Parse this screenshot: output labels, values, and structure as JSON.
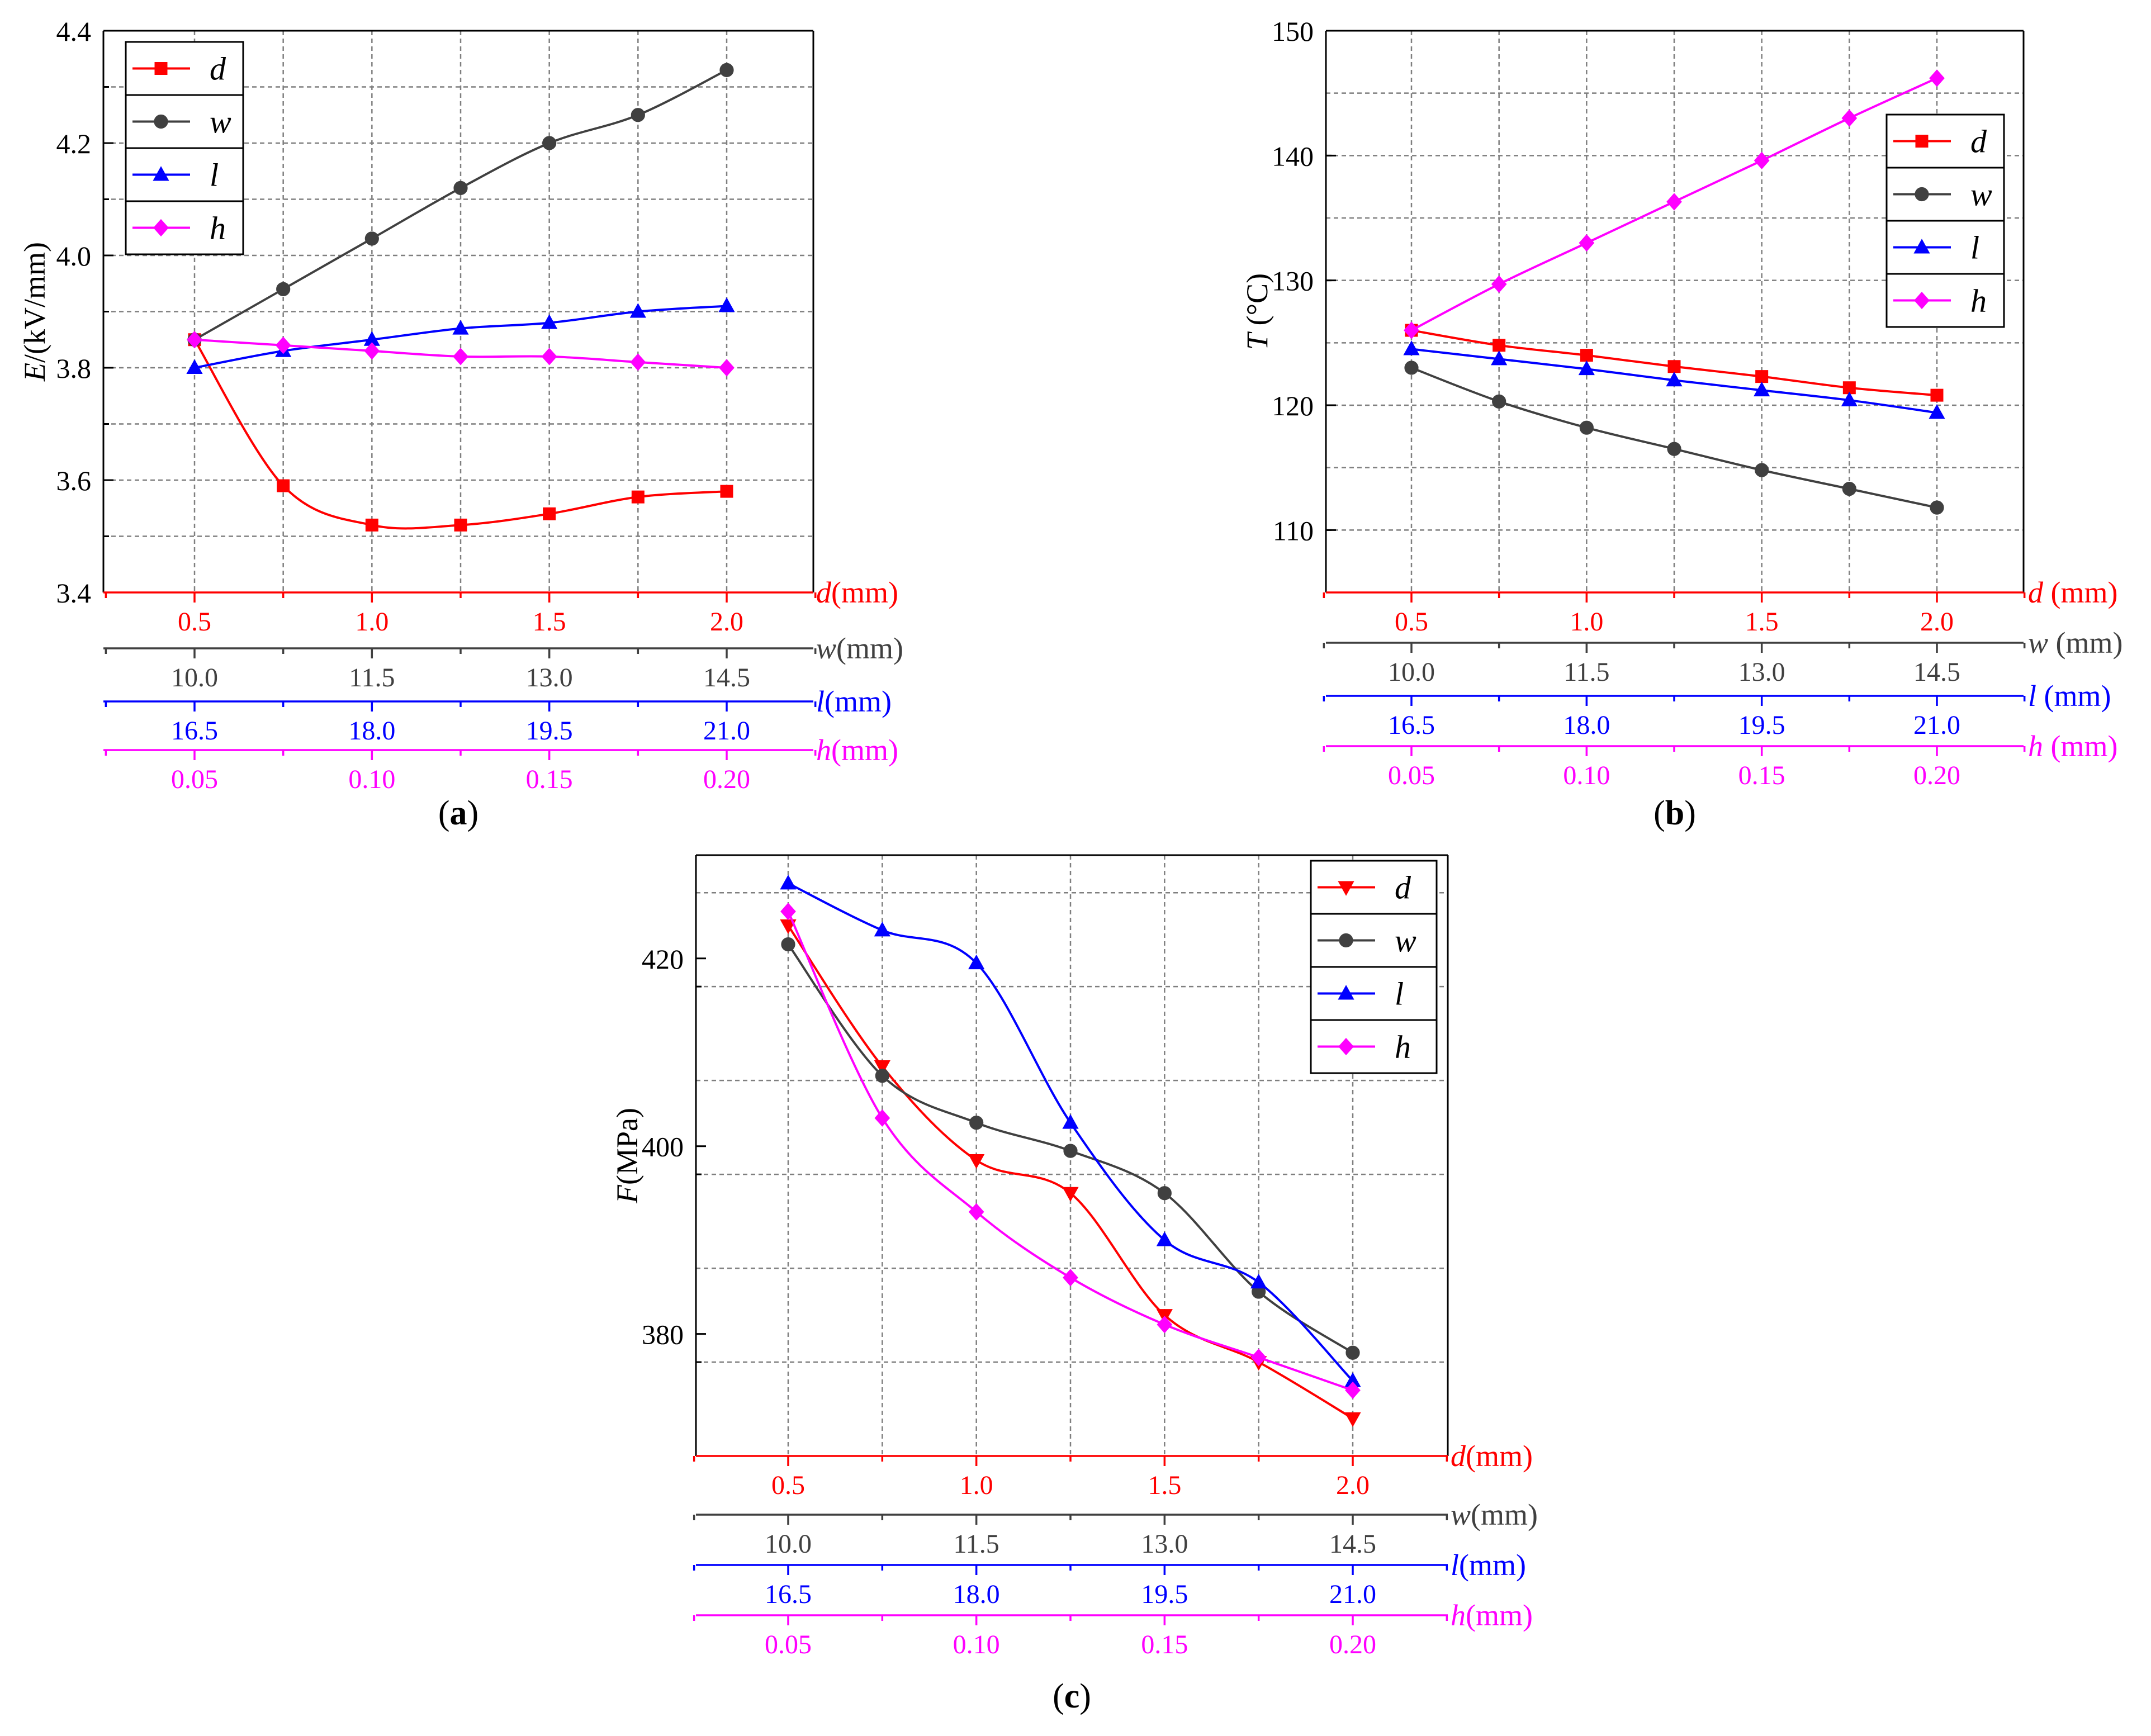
{
  "colors": {
    "d": "#ff0000",
    "w": "#404040",
    "l": "#0000ff",
    "h": "#ff00ff",
    "axis_black": "#000000",
    "grid": "#7f7f7f"
  },
  "chart_data": [
    {
      "id": "a",
      "type": "line",
      "panel_label": "a",
      "ylabel_var": "E",
      "ylabel_unit": "/(kV/mm)",
      "ylim": [
        3.4,
        4.4
      ],
      "yticks": [
        "3.4",
        "3.6",
        "3.8",
        "4.0",
        "4.2",
        "4.4"
      ],
      "x_positions": [
        0,
        1,
        2,
        3,
        4,
        5,
        6
      ],
      "secondary_axes": [
        {
          "key": "d",
          "var": "d",
          "unit": "(mm)",
          "ticks": [
            "0.5",
            "1.0",
            "1.5",
            "2.0"
          ]
        },
        {
          "key": "w",
          "var": "w",
          "unit": "(mm)",
          "ticks": [
            "10.0",
            "11.5",
            "13.0",
            "14.5"
          ]
        },
        {
          "key": "l",
          "var": "l",
          "unit": "(mm)",
          "ticks": [
            "16.5",
            "18.0",
            "19.5",
            "21.0"
          ]
        },
        {
          "key": "h",
          "var": "h",
          "unit": "(mm)",
          "ticks": [
            "0.05",
            "0.10",
            "0.15",
            "0.20"
          ]
        }
      ],
      "legend_position": "top-left",
      "series": [
        {
          "name": "d",
          "marker": "square",
          "values": [
            3.85,
            3.59,
            3.52,
            3.52,
            3.54,
            3.57,
            3.58
          ]
        },
        {
          "name": "w",
          "marker": "circle",
          "values": [
            3.85,
            3.94,
            4.03,
            4.12,
            4.2,
            4.25,
            4.33
          ]
        },
        {
          "name": "l",
          "marker": "triangle",
          "values": [
            3.8,
            3.83,
            3.85,
            3.87,
            3.88,
            3.9,
            3.91
          ]
        },
        {
          "name": "h",
          "marker": "diamond",
          "values": [
            3.85,
            3.84,
            3.83,
            3.82,
            3.82,
            3.81,
            3.8
          ]
        }
      ]
    },
    {
      "id": "b",
      "type": "line",
      "panel_label": "b",
      "ylabel_var": "T",
      "ylabel_unit": " (°C)",
      "ylim": [
        105,
        150
      ],
      "yticks": [
        "110",
        "120",
        "130",
        "140",
        "150"
      ],
      "x_positions": [
        0,
        1,
        2,
        3,
        4,
        5,
        6
      ],
      "secondary_axes": [
        {
          "key": "d",
          "var": "d",
          "unit": " (mm)",
          "ticks": [
            "0.5",
            "1.0",
            "1.5",
            "2.0"
          ]
        },
        {
          "key": "w",
          "var": "w",
          "unit": " (mm)",
          "ticks": [
            "10.0",
            "11.5",
            "13.0",
            "14.5"
          ]
        },
        {
          "key": "l",
          "var": "l",
          "unit": " (mm)",
          "ticks": [
            "16.5",
            "18.0",
            "19.5",
            "21.0"
          ]
        },
        {
          "key": "h",
          "var": "h",
          "unit": " (mm)",
          "ticks": [
            "0.05",
            "0.10",
            "0.15",
            "0.20"
          ]
        }
      ],
      "legend_position": "top-right",
      "series": [
        {
          "name": "d",
          "marker": "square",
          "values": [
            126.0,
            124.8,
            124.0,
            123.1,
            122.3,
            121.4,
            120.8
          ]
        },
        {
          "name": "w",
          "marker": "circle",
          "values": [
            123.0,
            120.3,
            118.2,
            116.5,
            114.8,
            113.3,
            111.8
          ]
        },
        {
          "name": "l",
          "marker": "triangle",
          "values": [
            124.5,
            123.7,
            122.9,
            122.0,
            121.2,
            120.4,
            119.4
          ]
        },
        {
          "name": "h",
          "marker": "diamond",
          "values": [
            126.0,
            129.7,
            133.0,
            136.3,
            139.6,
            143.0,
            146.2
          ]
        }
      ]
    },
    {
      "id": "c",
      "type": "line",
      "panel_label": "c",
      "ylabel_var": "F",
      "ylabel_unit": "(MPa)",
      "ylim": [
        367,
        431
      ],
      "yticks": [
        "380",
        "400",
        "420"
      ],
      "x_positions": [
        0,
        1,
        2,
        3,
        4,
        5,
        6
      ],
      "secondary_axes": [
        {
          "key": "d",
          "var": "d",
          "unit": "(mm)",
          "ticks": [
            "0.5",
            "1.0",
            "1.5",
            "2.0"
          ]
        },
        {
          "key": "w",
          "var": "w",
          "unit": "(mm)",
          "ticks": [
            "10.0",
            "11.5",
            "13.0",
            "14.5"
          ]
        },
        {
          "key": "l",
          "var": "l",
          "unit": "(mm)",
          "ticks": [
            "16.5",
            "18.0",
            "19.5",
            "21.0"
          ]
        },
        {
          "key": "h",
          "var": "h",
          "unit": "(mm)",
          "ticks": [
            "0.05",
            "0.10",
            "0.15",
            "0.20"
          ]
        }
      ],
      "legend_position": "top-right",
      "series": [
        {
          "name": "d",
          "marker": "triangle-down",
          "values": [
            423.5,
            408.5,
            398.5,
            395.0,
            382.0,
            377.0,
            371.0
          ]
        },
        {
          "name": "w",
          "marker": "circle",
          "values": [
            421.5,
            407.5,
            402.5,
            399.5,
            395.0,
            384.5,
            378.0
          ]
        },
        {
          "name": "l",
          "marker": "triangle",
          "values": [
            428.0,
            423.0,
            419.5,
            402.5,
            390.0,
            385.5,
            375.0
          ]
        },
        {
          "name": "h",
          "marker": "diamond",
          "values": [
            425.0,
            403.0,
            393.0,
            386.0,
            381.0,
            377.5,
            374.0
          ]
        }
      ]
    }
  ]
}
